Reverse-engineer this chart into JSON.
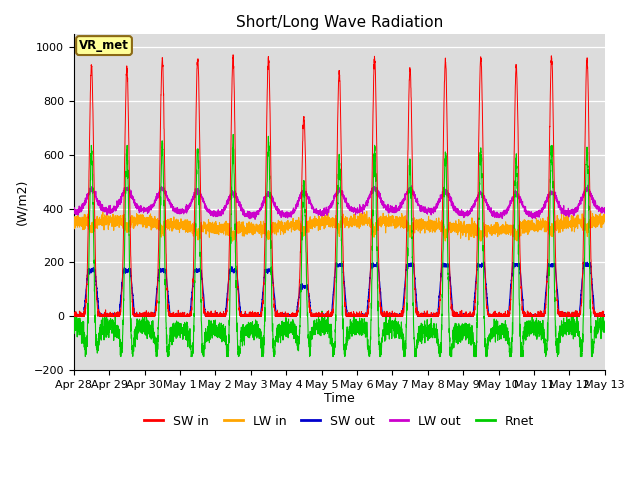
{
  "title": "Short/Long Wave Radiation",
  "xlabel": "Time",
  "ylabel": "(W/m2)",
  "ylim": [
    -200,
    1050
  ],
  "yticks": [
    -200,
    0,
    200,
    400,
    600,
    800,
    1000
  ],
  "bg_color": "#dcdcdc",
  "fig_color": "#ffffff",
  "annotation_text": "VR_met",
  "annotation_bg": "#ffff99",
  "annotation_border": "#8b6914",
  "colors": {
    "SW_in": "#ff0000",
    "LW_in": "#ffa500",
    "SW_out": "#0000cd",
    "LW_out": "#cc00cc",
    "Rnet": "#00cc00"
  },
  "legend_labels": [
    "SW in",
    "LW in",
    "SW out",
    "LW out",
    "Rnet"
  ],
  "num_days": 15,
  "points_per_day": 288
}
